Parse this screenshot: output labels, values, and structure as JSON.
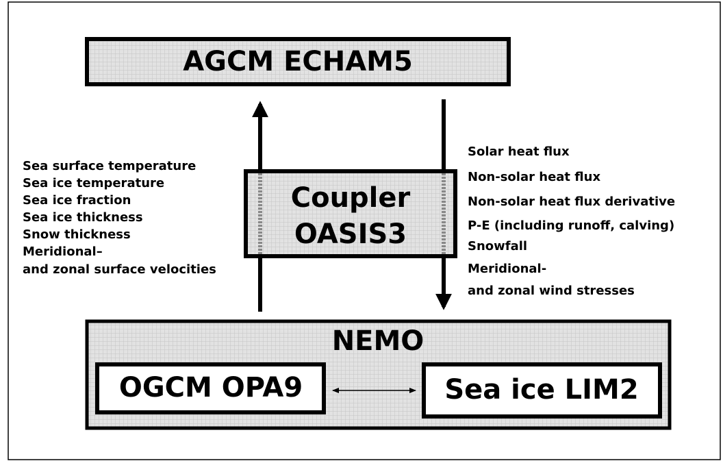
{
  "agcm": {
    "label": "AGCM ECHAM5"
  },
  "coupler": {
    "lines": [
      "Coupler",
      "OASIS3"
    ]
  },
  "ocean_to_atmosphere": [
    "Sea surface temperature",
    "Sea ice temperature",
    "Sea ice fraction",
    "Sea ice thickness",
    "Snow thickness",
    "Meridional–",
    "and zonal surface velocities"
  ],
  "atmosphere_to_ocean": [
    "Solar heat flux",
    "Non-solar heat flux",
    "Non-solar heat flux derivative",
    "P-E (including runoff, calving)",
    "Snowfall",
    "Meridional-",
    "and zonal wind stresses"
  ],
  "nemo": {
    "label": "NEMO",
    "ocean": "OGCM OPA9",
    "sea_ice": "Sea ice LIM2"
  }
}
